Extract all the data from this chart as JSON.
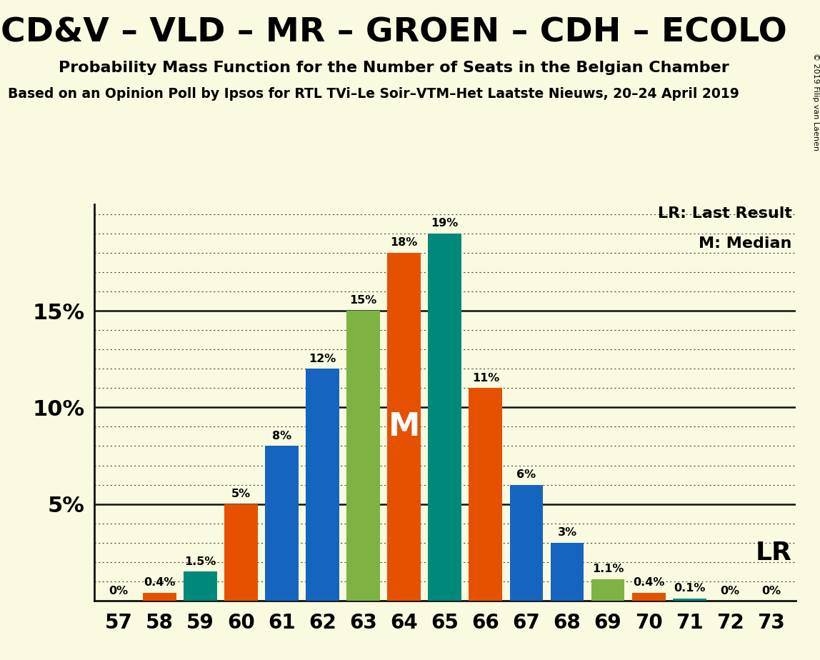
{
  "title": "CD&V – VLD – MR – GROEN – CDH – ECOLO",
  "subtitle": "Probability Mass Function for the Number of Seats in the Belgian Chamber",
  "subtitle2": "Based on an Opinion Poll by Ipsos for RTL TVi–Le Soir–VTM–Het Laatste Nieuws, 20–24 April 2019",
  "copyright": "© 2019 Filip van Laenen",
  "background_color": "#FAFAE0",
  "seats": [
    57,
    58,
    59,
    60,
    61,
    62,
    63,
    64,
    65,
    66,
    67,
    68,
    69,
    70,
    71,
    72,
    73
  ],
  "values": [
    0.0,
    0.4,
    1.5,
    5.0,
    8.0,
    12.0,
    15.0,
    18.0,
    19.0,
    11.0,
    6.0,
    3.0,
    1.1,
    0.4,
    0.1,
    0.0,
    0.0
  ],
  "bar_colors": [
    "#1565C0",
    "#E65100",
    "#00897B",
    "#E65100",
    "#1565C0",
    "#1565C0",
    "#7CB342",
    "#E65100",
    "#00897B",
    "#E65100",
    "#1565C0",
    "#1565C0",
    "#7CB342",
    "#E65100",
    "#00897B",
    "#1565C0",
    "#1565C0"
  ],
  "label_values": [
    "0%",
    "0.4%",
    "1.5%",
    "5%",
    "8%",
    "12%",
    "15%",
    "18%",
    "19%",
    "11%",
    "6%",
    "3%",
    "1.1%",
    "0.4%",
    "0.1%",
    "0%",
    "0%"
  ],
  "median_seat": 64,
  "lr_seat": 73,
  "ylim": [
    0,
    20.5
  ],
  "solid_yticks": [
    5,
    10,
    15
  ],
  "ytick_labels_map": {
    "5": "5%",
    "10": "10%",
    "15": "15%"
  },
  "dotted_yticks": [
    1,
    2,
    3,
    4,
    6,
    7,
    8,
    9,
    11,
    12,
    13,
    14,
    16,
    17,
    18,
    19,
    20
  ],
  "legend_lr": "LR: Last Result",
  "legend_m": "M: Median",
  "solid_line_color": "#111111",
  "dotted_line_color": "#444444",
  "axis_line_color": "#111111"
}
